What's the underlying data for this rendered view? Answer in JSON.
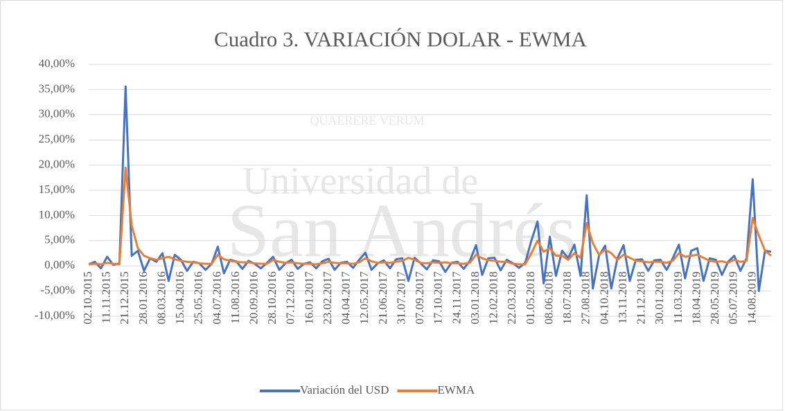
{
  "watermark": {
    "line1": "Universidad de",
    "line2": "San Andrés",
    "motto": "QUAERERE VERUM"
  },
  "chart_data": {
    "type": "line",
    "title": "Cuadro 3. VARIACIÓN DOLAR - EWMA",
    "categories": [
      "02.10.2015",
      null,
      null,
      "11.11.2015",
      null,
      null,
      "21.12.2015",
      null,
      null,
      "28.01.2016",
      null,
      null,
      "08.03.2016",
      null,
      null,
      "15.04.2016",
      null,
      null,
      "25.05.2016",
      null,
      null,
      "04.07.2016",
      null,
      null,
      "11.08.2016",
      null,
      null,
      "20.09.2016",
      null,
      null,
      "28.10.2016",
      null,
      null,
      "07.12.2016",
      null,
      null,
      "16.01.2017",
      null,
      null,
      "23.02.2017",
      null,
      null,
      "04.04.2017",
      null,
      null,
      "12.05.2017",
      null,
      null,
      "21.06.2017",
      null,
      null,
      "31.07.2017",
      null,
      null,
      "07.09.2017",
      null,
      null,
      "17.10.2017",
      null,
      null,
      "24.11.2017",
      null,
      null,
      "03.01.2018",
      null,
      null,
      "12.02.2018",
      null,
      null,
      "22.03.2018",
      null,
      null,
      "01.05.2018",
      null,
      null,
      "08.06.2018",
      null,
      null,
      "18.07.2018",
      null,
      null,
      "27.08.2018",
      null,
      null,
      "04.10.2018",
      null,
      null,
      "13.11.2018",
      null,
      null,
      "21.12.2018",
      null,
      null,
      "30.01.2019",
      null,
      null,
      "11.03.2019",
      null,
      null,
      "18.04.2019",
      null,
      null,
      "28.05.2019",
      null,
      null,
      "05.07.2019",
      null,
      null,
      "14.08.2019",
      null,
      null,
      null
    ],
    "series": [
      {
        "name": "Variación del USD",
        "color": "#4472c4",
        "values": [
          0.3,
          0.8,
          -0.5,
          1.8,
          0.2,
          0.5,
          35.6,
          2,
          3,
          -1,
          1.5,
          0.8,
          2.5,
          -3,
          2.2,
          1.2,
          -1,
          0.8,
          0.5,
          -0.8,
          0.4,
          3.8,
          -1.5,
          1.2,
          0.9,
          -0.6,
          1,
          0.4,
          -0.5,
          0.6,
          1.8,
          -0.8,
          0.5,
          1.2,
          -0.6,
          0.4,
          0.7,
          -0.5,
          0.9,
          1.4,
          -0.8,
          0.6,
          0.8,
          -0.4,
          1.2,
          2.6,
          -0.8,
          0.5,
          1.1,
          -0.5,
          1.3,
          1.5,
          -3,
          1.6,
          0.5,
          -0.7,
          1.1,
          0.9,
          -1.2,
          0.6,
          0.8,
          -0.6,
          1,
          4.1,
          -1.8,
          1.5,
          1.6,
          -0.9,
          1.2,
          0.5,
          -0.4,
          0.6,
          5,
          8.8,
          -3.5,
          5.8,
          -2,
          3,
          1.5,
          4.2,
          -2,
          14,
          -4.5,
          2,
          4,
          -4.5,
          1.5,
          4.1,
          -3,
          1.2,
          1.3,
          -1,
          1.1,
          1.2,
          -0.8,
          1.5,
          4.2,
          -2.5,
          3,
          3.5,
          -3,
          1.5,
          1.2,
          -1.8,
          0.8,
          2,
          -1,
          1.5,
          17.2,
          -5,
          3,
          2.8
        ]
      },
      {
        "name": "EWMA",
        "color": "#ed7d31",
        "values": [
          0.3,
          0.4,
          0.3,
          0.6,
          0.4,
          0.3,
          19.5,
          8,
          3.5,
          2,
          1.5,
          1.2,
          1.5,
          1.8,
          1.3,
          1,
          0.8,
          0.7,
          0.5,
          0.4,
          0.4,
          2.2,
          1.3,
          1,
          0.8,
          0.7,
          0.7,
          0.5,
          0.4,
          0.4,
          1.2,
          0.8,
          0.6,
          0.7,
          0.5,
          0.4,
          0.4,
          0.3,
          0.5,
          0.8,
          0.6,
          0.5,
          0.5,
          0.4,
          0.7,
          1.5,
          0.9,
          0.6,
          0.7,
          0.6,
          0.8,
          1,
          1.6,
          1.2,
          0.6,
          0.5,
          0.7,
          0.6,
          0.7,
          0.5,
          0.5,
          0.4,
          0.6,
          2.2,
          1.5,
          1.1,
          1,
          0.8,
          0.8,
          0.4,
          0.3,
          0.3,
          2.5,
          5,
          2.8,
          3.5,
          2,
          2,
          1.2,
          2.5,
          1.6,
          8.5,
          4.5,
          2.2,
          3.2,
          2.5,
          1.2,
          2.2,
          1.6,
          1,
          0.9,
          0.7,
          0.8,
          0.8,
          0.6,
          1,
          2.5,
          1.8,
          2,
          2.2,
          1.6,
          1,
          0.8,
          0.9,
          0.6,
          1.2,
          0.8,
          1,
          9.5,
          6,
          3,
          2
        ]
      }
    ],
    "ylim": [
      -10,
      40
    ],
    "yticks": [
      {
        "value": -10,
        "label": "-10,00%"
      },
      {
        "value": -5,
        "label": "-5,00%"
      },
      {
        "value": 0,
        "label": "0,00%"
      },
      {
        "value": 5,
        "label": "5,00%"
      },
      {
        "value": 10,
        "label": "10,00%"
      },
      {
        "value": 15,
        "label": "15,00%"
      },
      {
        "value": 20,
        "label": "20,00%"
      },
      {
        "value": 25,
        "label": "25,00%"
      },
      {
        "value": 30,
        "label": "30,00%"
      },
      {
        "value": 35,
        "label": "35,00%"
      },
      {
        "value": 40,
        "label": "40,00%"
      }
    ],
    "grid": true,
    "legend": "bottom"
  }
}
